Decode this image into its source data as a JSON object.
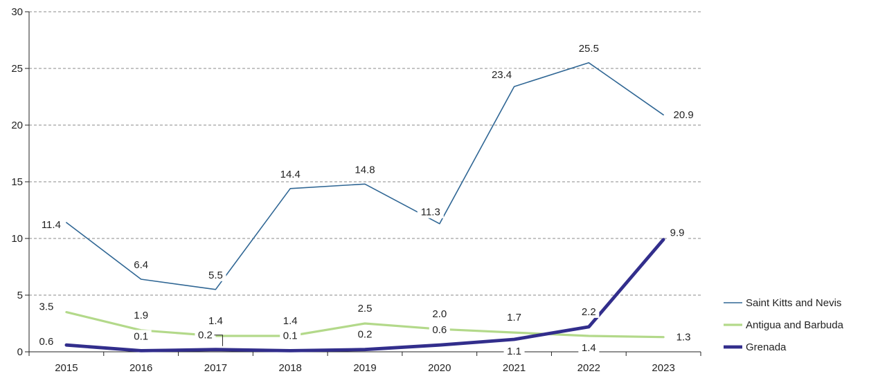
{
  "chart_data": {
    "type": "line",
    "categories": [
      "2015",
      "2016",
      "2017",
      "2018",
      "2019",
      "2020",
      "2021",
      "2022",
      "2023"
    ],
    "ylim": [
      0,
      30
    ],
    "yticks": [
      "0",
      "5",
      "10",
      "15",
      "20",
      "25",
      "30"
    ],
    "grid": true,
    "legend_position": "bottom-right",
    "series": [
      {
        "name": "Saint Kitts and Nevis",
        "color": "#2f6694",
        "values": [
          11.4,
          6.4,
          5.5,
          14.4,
          14.8,
          11.3,
          23.4,
          25.5,
          20.9
        ],
        "labels": [
          "11.4",
          "6.4",
          "5.5",
          "14.4",
          "14.8",
          "11.3",
          "23.4",
          "25.5",
          "20.9"
        ]
      },
      {
        "name": "Antigua and Barbuda",
        "color": "#b3d98a",
        "values": [
          3.5,
          1.9,
          1.4,
          1.4,
          2.5,
          2.0,
          1.7,
          1.4,
          1.3
        ],
        "labels": [
          "3.5",
          "1.9",
          "1.4",
          "1.4",
          "2.5",
          "2.0",
          "1.7",
          "1.4",
          "1.3"
        ]
      },
      {
        "name": "Grenada",
        "color": "#322e8c",
        "values": [
          0.6,
          0.1,
          0.2,
          0.1,
          0.2,
          0.6,
          1.1,
          2.2,
          9.9
        ],
        "labels": [
          "0.6",
          "0.1",
          "0.2",
          "0.1",
          "0.2",
          "0.6",
          "1.1",
          "2.2",
          "9.9"
        ]
      }
    ]
  }
}
